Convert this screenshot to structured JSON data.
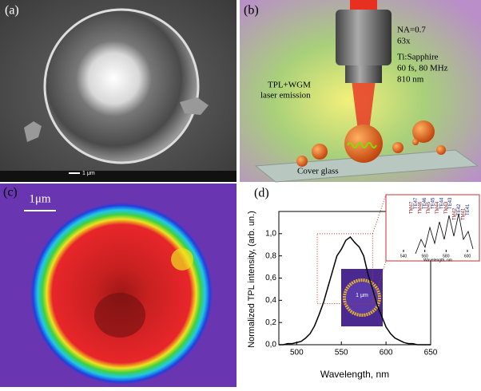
{
  "panel_a": {
    "label": "(a)",
    "scale_bar": "1 μm"
  },
  "panel_b": {
    "label": "(b)",
    "objective_lines": [
      "NA=0.7",
      "63x"
    ],
    "laser_lines": [
      "Ti:Sapphire",
      "60 fs, 80 MHz",
      "810 nm"
    ],
    "emission_lines": [
      "TPL+WGM",
      "laser emission"
    ],
    "substrate": "Cover glass"
  },
  "panel_c": {
    "label": "(c)",
    "scale_bar": "1μm"
  },
  "chart_data": {
    "type": "line",
    "label": "(d)",
    "x_label": "Wavelength, nm",
    "y_label": "Normalized TPL intensity, (arb. un.)",
    "xlim": [
      480,
      650
    ],
    "xticks": [
      500,
      550,
      600,
      650
    ],
    "ylim": [
      0,
      1.2
    ],
    "yticks": [
      {
        "value": 0,
        "label": "0,0"
      },
      {
        "value": 0.2,
        "label": "0,2"
      },
      {
        "value": 0.4,
        "label": "0,4"
      },
      {
        "value": 0.6,
        "label": "0,6"
      },
      {
        "value": 0.8,
        "label": "0,8"
      },
      {
        "value": 1,
        "label": "1,0"
      }
    ],
    "x": [
      480,
      485,
      490,
      495,
      500,
      505,
      510,
      515,
      520,
      525,
      530,
      535,
      540,
      545,
      550,
      555,
      560,
      565,
      570,
      575,
      580,
      585,
      590,
      595,
      600,
      605,
      610,
      615,
      620,
      625,
      630,
      635,
      640,
      645,
      650
    ],
    "series": [
      {
        "color": "#000000",
        "values": [
          0,
          0,
          0.01,
          0.01,
          0.02,
          0.03,
          0.06,
          0.1,
          0.17,
          0.27,
          0.38,
          0.52,
          0.66,
          0.8,
          0.86,
          0.94,
          0.97,
          0.92,
          0.88,
          0.8,
          0.63,
          0.5,
          0.36,
          0.26,
          0.16,
          0.1,
          0.06,
          0.04,
          0.02,
          0.01,
          0.01,
          0,
          0,
          0,
          0
        ]
      }
    ],
    "inset": {
      "modes": [
        "TM47",
        "TE47",
        "TM46",
        "TE46",
        "TM45",
        "TE45",
        "TM44",
        "TE44",
        "TM43",
        "TE43",
        "TM42",
        "TE42",
        "TM41",
        "TE41"
      ],
      "xticks": [
        540,
        560,
        580,
        600
      ],
      "x_label": "Wavelength, nm",
      "image_scale_bar": "1 μm"
    }
  }
}
